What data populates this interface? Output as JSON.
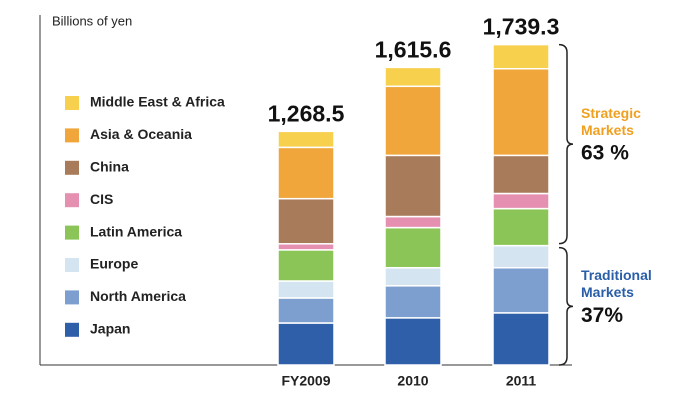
{
  "chart_data": {
    "type": "stacked_bar",
    "y_axis_label": "Billions of yen",
    "categories": [
      "FY2009",
      "2010",
      "2011"
    ],
    "ylim": [
      0,
      1900
    ],
    "series": [
      {
        "name": "Japan",
        "color": "#2f5fa8",
        "values": [
          228,
          256,
          283
        ]
      },
      {
        "name": "North America",
        "color": "#7d9fcf",
        "values": [
          136,
          174,
          245
        ]
      },
      {
        "name": "Europe",
        "color": "#d4e4f1",
        "values": [
          92,
          98,
          120
        ]
      },
      {
        "name": "Latin America",
        "color": "#8cc557",
        "values": [
          169,
          218,
          201
        ]
      },
      {
        "name": "CIS",
        "color": "#e58fb1",
        "values": [
          33,
          60,
          82
        ]
      },
      {
        "name": "China",
        "color": "#a87b5a",
        "values": [
          245,
          332,
          207
        ]
      },
      {
        "name": "Asia & Oceania",
        "color": "#f0a63b",
        "values": [
          278.5,
          375,
          470.3
        ]
      },
      {
        "name": "Middle East & Africa",
        "color": "#f7d04e",
        "values": [
          87,
          102.6,
          131
        ]
      }
    ],
    "totals": {
      "values": [
        1268.5,
        1615.6,
        1739.3
      ],
      "value_labels": [
        "1,268.5",
        "1,615.6",
        "1,739.3"
      ]
    },
    "annotations": [
      {
        "label": [
          "Strategic",
          "Markets"
        ],
        "share": "63 %",
        "color": "#f0a020"
      },
      {
        "label": [
          "Traditional",
          "Markets"
        ],
        "share": "37%",
        "color": "#2a5ea8"
      }
    ]
  }
}
